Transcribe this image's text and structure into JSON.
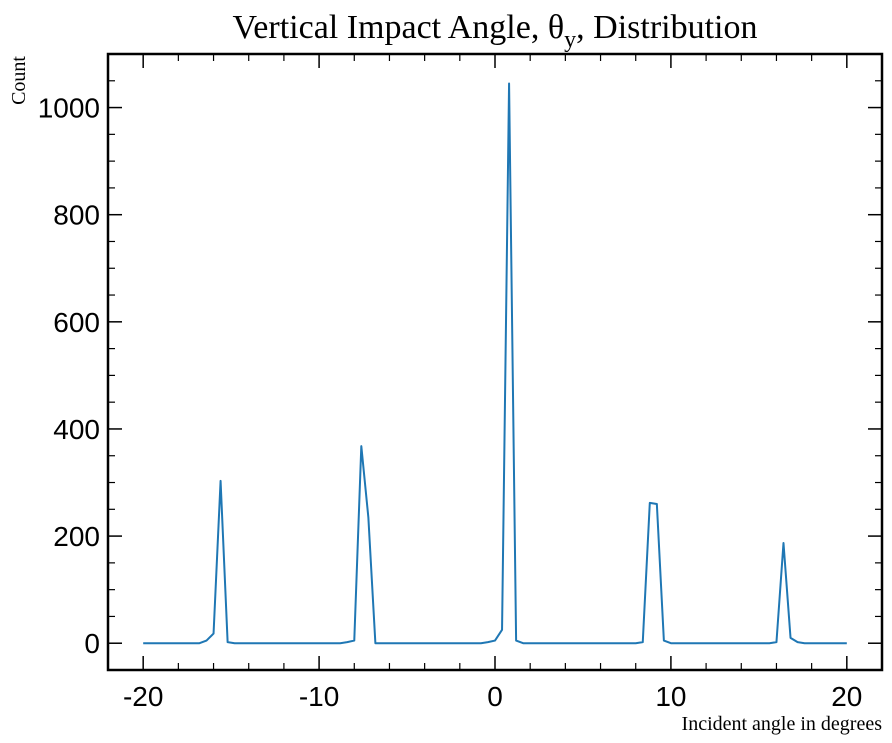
{
  "chart_data": {
    "type": "line",
    "title": "Vertical Impact Angle, θ",
    "title_subscript": "y",
    "title_suffix": ", Distribution",
    "xlabel": "Incident angle in degrees",
    "ylabel": "Count",
    "xlim": [
      -22,
      22
    ],
    "ylim": [
      -50,
      1100
    ],
    "xticks": [
      -20,
      -10,
      0,
      10,
      20
    ],
    "yticks": [
      0,
      200,
      400,
      600,
      800,
      1000
    ],
    "grid": false,
    "series": [
      {
        "color": "#1f77b4",
        "x": [
          -20,
          -19.6,
          -19.2,
          -18.8,
          -18.4,
          -18.0,
          -17.6,
          -17.2,
          -16.8,
          -16.4,
          -16.0,
          -15.6,
          -15.2,
          -14.8,
          -14.4,
          -14.0,
          -13.6,
          -13.2,
          -12.8,
          -12.4,
          -12.0,
          -11.6,
          -11.2,
          -10.8,
          -10.4,
          -10.0,
          -9.6,
          -9.2,
          -8.8,
          -8.4,
          -8.0,
          -7.6,
          -7.2,
          -6.8,
          -6.4,
          -6.0,
          -5.6,
          -5.2,
          -4.8,
          -4.4,
          -4.0,
          -3.6,
          -3.2,
          -2.8,
          -2.4,
          -2.0,
          -1.6,
          -1.2,
          -0.8,
          -0.4,
          0.0,
          0.4,
          0.8,
          1.2,
          1.6,
          2.0,
          2.4,
          2.8,
          3.2,
          3.6,
          4.0,
          4.4,
          4.8,
          5.2,
          5.6,
          6.0,
          6.4,
          6.8,
          7.2,
          7.6,
          8.0,
          8.4,
          8.8,
          9.2,
          9.6,
          10.0,
          10.4,
          10.8,
          11.2,
          11.6,
          12.0,
          12.4,
          12.8,
          13.2,
          13.6,
          14.0,
          14.4,
          14.8,
          15.2,
          15.6,
          16.0,
          16.4,
          16.8,
          17.2,
          17.6,
          18.0,
          18.4,
          18.8,
          19.2,
          19.6,
          20.0
        ],
        "y": [
          0,
          0,
          0,
          0,
          0,
          0,
          0,
          0,
          0,
          5,
          18,
          303,
          2,
          0,
          0,
          0,
          0,
          0,
          0,
          0,
          0,
          0,
          0,
          0,
          0,
          0,
          0,
          0,
          0,
          2,
          5,
          368,
          235,
          0,
          0,
          0,
          0,
          0,
          0,
          0,
          0,
          0,
          0,
          0,
          0,
          0,
          0,
          0,
          0,
          2,
          5,
          25,
          1045,
          5,
          0,
          0,
          0,
          0,
          0,
          0,
          0,
          0,
          0,
          0,
          0,
          0,
          0,
          0,
          0,
          0,
          0,
          2,
          262,
          260,
          5,
          0,
          0,
          0,
          0,
          0,
          0,
          0,
          0,
          0,
          0,
          0,
          0,
          0,
          0,
          0,
          2,
          187,
          10,
          2,
          0,
          0,
          0,
          0,
          0,
          0,
          0
        ]
      }
    ]
  }
}
